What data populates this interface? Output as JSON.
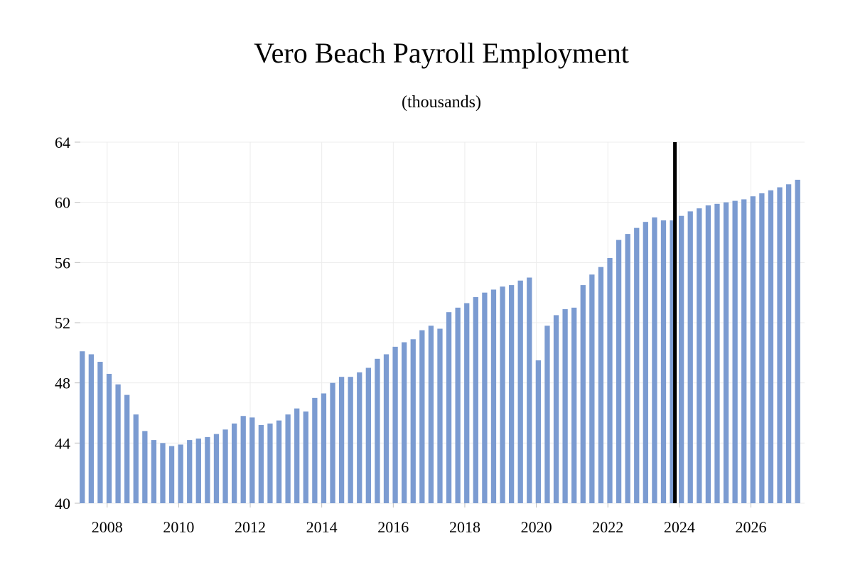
{
  "chart_data": {
    "type": "bar",
    "title": "Vero Beach Payroll Employment",
    "subtitle": "(thousands)",
    "xlabel": "",
    "ylabel": "",
    "ylim": [
      40,
      64
    ],
    "yticks": [
      40,
      44,
      48,
      52,
      56,
      60,
      64
    ],
    "xlim": [
      2007.25,
      2027.5
    ],
    "xticks": [
      {
        "label": "2008",
        "value": 2008
      },
      {
        "label": "2010",
        "value": 2010
      },
      {
        "label": "2012",
        "value": 2012
      },
      {
        "label": "2014",
        "value": 2014
      },
      {
        "label": "2016",
        "value": 2016
      },
      {
        "label": "2018",
        "value": 2018
      },
      {
        "label": "2020",
        "value": 2020
      },
      {
        "label": "2022",
        "value": 2022
      },
      {
        "label": "2024",
        "value": 2024
      },
      {
        "label": "2026",
        "value": 2026
      }
    ],
    "grid": true,
    "bar_color": "#7b9bd1",
    "forecast_marker": 2024.0,
    "series": [
      {
        "x_start": 2007.25,
        "x_step": 0.25,
        "values": [
          50.1,
          49.9,
          49.4,
          48.6,
          47.9,
          47.2,
          45.9,
          44.8,
          44.2,
          44.0,
          43.8,
          43.9,
          44.2,
          44.3,
          44.4,
          44.6,
          44.9,
          45.3,
          45.8,
          45.7,
          45.2,
          45.3,
          45.5,
          45.9,
          46.3,
          46.1,
          47.0,
          47.3,
          48.0,
          48.4,
          48.4,
          48.7,
          49.0,
          49.6,
          49.9,
          50.4,
          50.7,
          50.9,
          51.5,
          51.8,
          51.6,
          52.7,
          53.0,
          53.3,
          53.7,
          54.0,
          54.2,
          54.4,
          54.5,
          54.8,
          55.0,
          49.5,
          51.8,
          52.5,
          52.9,
          53.0,
          54.5,
          55.2,
          55.7,
          56.3,
          57.5,
          57.9,
          58.3,
          58.7,
          59.0,
          58.8,
          58.8,
          59.1,
          59.4,
          59.6,
          59.8,
          59.9,
          60.0,
          60.1,
          60.2,
          60.4,
          60.6,
          60.8,
          61.0,
          61.2,
          61.5
        ]
      }
    ]
  }
}
